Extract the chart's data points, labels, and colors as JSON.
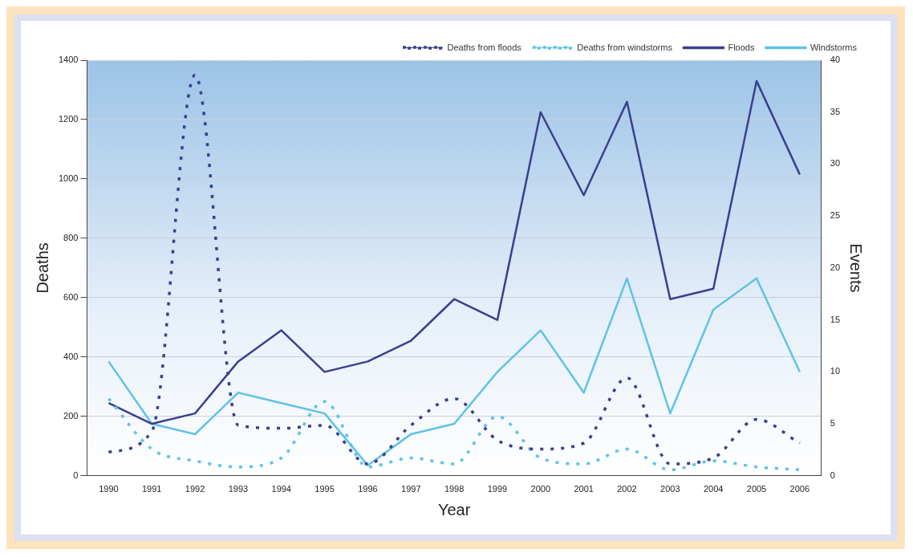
{
  "chart_data": {
    "type": "line",
    "categories": [
      "1990",
      "1991",
      "1992",
      "1993",
      "1994",
      "1995",
      "1996",
      "1997",
      "1998",
      "1999",
      "2000",
      "2001",
      "2002",
      "2003",
      "2004",
      "2005",
      "2006"
    ],
    "series": [
      {
        "name": "Deaths from floods",
        "color": "#3a3f8f",
        "line_style": "dashed",
        "axis": "y",
        "values": [
          80,
          150,
          1350,
          170,
          160,
          170,
          40,
          170,
          260,
          120,
          90,
          110,
          330,
          40,
          60,
          190,
          110
        ]
      },
      {
        "name": "Deaths from windstorms",
        "color": "#5ec3e6",
        "line_style": "dashed",
        "axis": "y",
        "values": [
          260,
          90,
          50,
          30,
          60,
          250,
          30,
          60,
          40,
          200,
          60,
          40,
          90,
          20,
          50,
          30,
          20
        ]
      },
      {
        "name": "Floods",
        "color": "#3a3f8f",
        "line_style": "solid",
        "axis": "y2",
        "values": [
          7,
          5,
          6,
          11,
          14,
          10,
          11,
          13,
          17,
          15,
          35,
          27,
          36,
          17,
          18,
          38,
          29
        ]
      },
      {
        "name": "Windstorms",
        "color": "#5ec3e6",
        "line_style": "solid",
        "axis": "y2",
        "values": [
          11,
          5,
          4,
          8,
          7,
          6,
          1,
          4,
          5,
          10,
          14,
          8,
          19,
          6,
          16,
          19,
          10
        ]
      }
    ],
    "xlabel": "Year",
    "ylabel": "Deaths",
    "y2label": "Events",
    "ylim": [
      0,
      1400
    ],
    "yticks": [
      0,
      200,
      400,
      600,
      800,
      1000,
      1200,
      1400
    ],
    "y2lim": [
      0,
      40
    ],
    "y2ticks": [
      0,
      5,
      10,
      15,
      20,
      25,
      30,
      35,
      40
    ],
    "grid": "y",
    "legend": "top right",
    "marker": "none"
  }
}
